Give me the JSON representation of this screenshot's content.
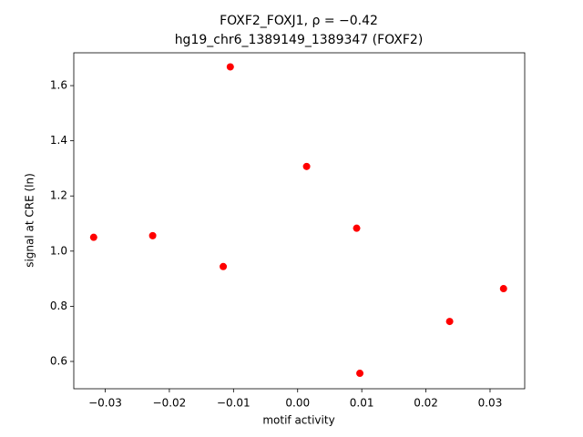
{
  "chart_data": {
    "type": "scatter",
    "title": "FOXF2_FOXJ1, ρ = −0.42",
    "subtitle": "hg19_chr6_1389149_1389347 (FOXF2)",
    "x_label": "motif activity",
    "y_label": "signal at CRE (ln)",
    "series": [
      {
        "color": "#ff0000",
        "x": [
          -0.0318,
          -0.0226,
          -0.0116,
          -0.0105,
          0.0014,
          0.0092,
          0.0097,
          0.0237,
          0.0321
        ],
        "values": [
          1.05,
          1.056,
          0.944,
          1.668,
          1.307,
          1.083,
          0.557,
          0.745,
          0.864
        ]
      }
    ],
    "xlim": [
      -0.0349,
      0.0354
    ],
    "ylim": [
      0.501,
      1.719
    ],
    "xticks": [
      {
        "value": -0.03,
        "label": "−0.03"
      },
      {
        "value": -0.02,
        "label": "−0.02"
      },
      {
        "value": -0.01,
        "label": "−0.01"
      },
      {
        "value": 0,
        "label": "0.00"
      },
      0.01,
      0.02,
      0.03
    ],
    "yticks": [
      0.6,
      0.8,
      {
        "value": 1.0,
        "label": "1.0"
      },
      1.2,
      1.4,
      1.6
    ]
  }
}
